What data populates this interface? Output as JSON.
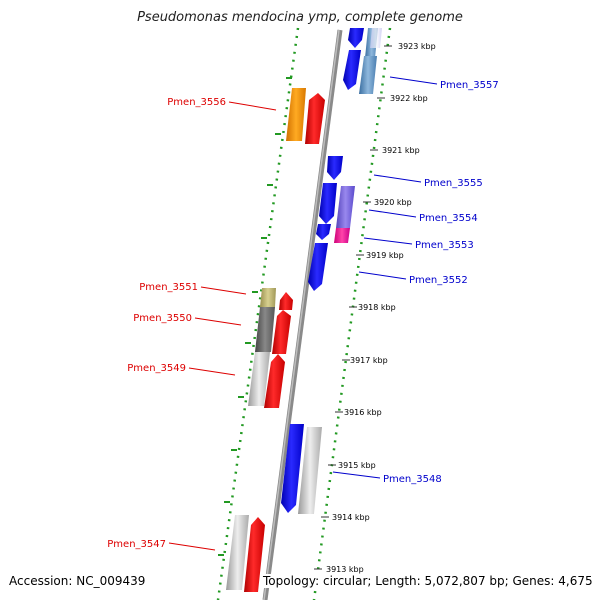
{
  "title": "Pseudomonas mendocina ymp, complete genome",
  "accession_text": "Accession: NC_009439",
  "topology_text": "Topology: circular; Length: 5,072,807 bp; Genes: 4,675",
  "colors": {
    "forward_label": "#dd0000",
    "reverse_label": "#0000cc",
    "backbone": "#8a8a8a",
    "dotted_guide": "#229922",
    "forward_gene": "#ff0000",
    "reverse_gene": "#0000ee"
  },
  "ticks": [
    "3923 kbp",
    "3922 kbp",
    "3921 kbp",
    "3920 kbp",
    "3919 kbp",
    "3918 kbp",
    "3917 kbp",
    "3916 kbp",
    "3915 kbp",
    "3914 kbp",
    "3913 kbp"
  ],
  "genes": [
    {
      "id": "Pmen_3557",
      "strand": "reverse"
    },
    {
      "id": "Pmen_3556",
      "strand": "forward"
    },
    {
      "id": "Pmen_3555",
      "strand": "reverse"
    },
    {
      "id": "Pmen_3554",
      "strand": "reverse"
    },
    {
      "id": "Pmen_3553",
      "strand": "reverse"
    },
    {
      "id": "Pmen_3552",
      "strand": "reverse"
    },
    {
      "id": "Pmen_3551",
      "strand": "forward"
    },
    {
      "id": "Pmen_3550",
      "strand": "forward"
    },
    {
      "id": "Pmen_3549",
      "strand": "forward"
    },
    {
      "id": "Pmen_3548",
      "strand": "reverse"
    },
    {
      "id": "Pmen_3547",
      "strand": "forward"
    }
  ]
}
